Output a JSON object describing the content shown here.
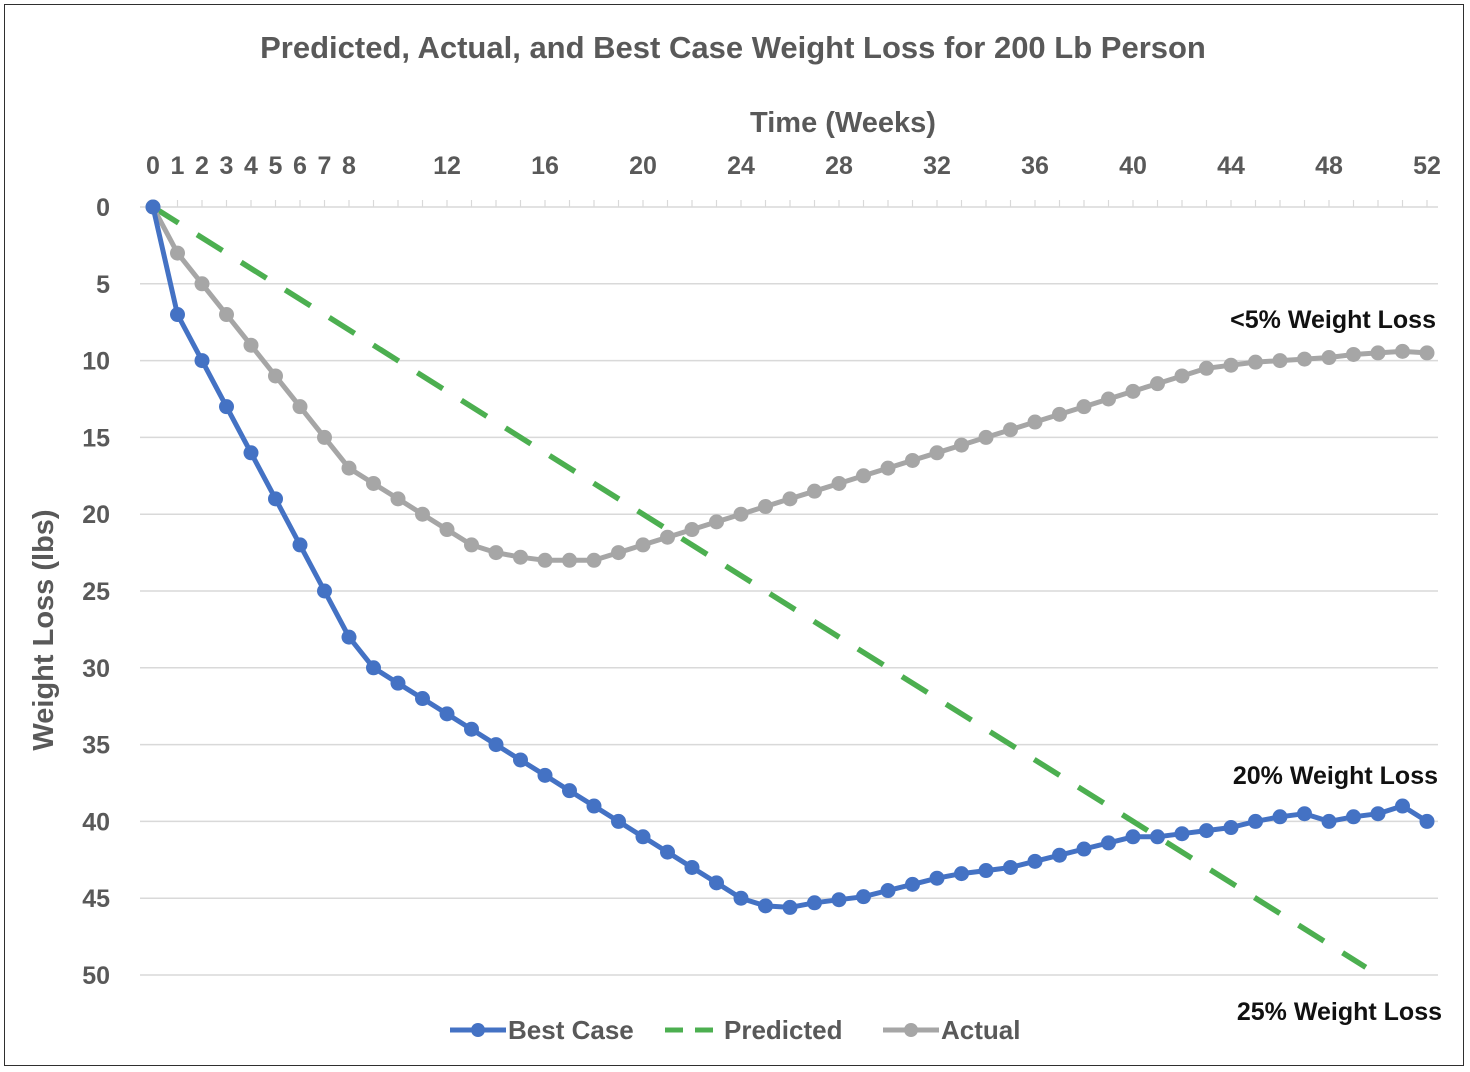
{
  "chart_data": {
    "type": "line",
    "title": "Predicted, Actual, and Best Case Weight Loss for 200 Lb Person",
    "xlabel": "Time (Weeks)",
    "ylabel": "Weight Loss (lbs)",
    "xlim": [
      0,
      52
    ],
    "ylim": [
      0,
      50
    ],
    "y_reversed": true,
    "x_axis_position": "top",
    "grid": true,
    "legend_position": "bottom",
    "x_tick_labels": [
      "0",
      "1",
      "2",
      "3",
      "4",
      "5",
      "6",
      "7",
      "8",
      "12",
      "16",
      "20",
      "24",
      "28",
      "32",
      "36",
      "40",
      "44",
      "48",
      "52"
    ],
    "y_tick_labels": [
      "0",
      "5",
      "10",
      "15",
      "20",
      "25",
      "30",
      "35",
      "40",
      "45",
      "50"
    ],
    "x": [
      0,
      1,
      2,
      3,
      4,
      5,
      6,
      7,
      8,
      9,
      10,
      11,
      12,
      13,
      14,
      15,
      16,
      17,
      18,
      19,
      20,
      21,
      22,
      23,
      24,
      25,
      26,
      27,
      28,
      29,
      30,
      31,
      32,
      33,
      34,
      35,
      36,
      37,
      38,
      39,
      40,
      41,
      42,
      43,
      44,
      45,
      46,
      47,
      48,
      49,
      50,
      51,
      52
    ],
    "series": [
      {
        "name": "Best Case",
        "color": "#4472c4",
        "style": "solid-markers",
        "values": [
          0,
          7,
          10,
          13,
          16,
          19,
          22,
          25,
          28,
          30,
          31,
          32,
          33,
          34,
          35,
          36,
          37,
          38,
          39,
          40,
          41,
          42,
          43,
          44,
          45,
          45.5,
          45.6,
          45.3,
          45.1,
          44.9,
          44.5,
          44.1,
          43.7,
          43.4,
          43.2,
          43,
          42.6,
          42.2,
          41.8,
          41.4,
          41,
          41,
          40.8,
          40.6,
          40.4,
          40,
          39.7,
          39.5,
          40,
          39.7,
          39.5,
          39,
          40
        ]
      },
      {
        "name": "Predicted",
        "color": "#4caf50",
        "style": "dashed",
        "x": [
          0,
          49.5
        ],
        "values": [
          0,
          49.5
        ]
      },
      {
        "name": "Actual",
        "color": "#a6a6a6",
        "style": "solid-markers",
        "values": [
          0,
          3,
          5,
          7,
          9,
          11,
          13,
          15,
          17,
          18,
          19,
          20,
          21,
          22,
          22.5,
          22.8,
          23,
          23,
          23,
          22.5,
          22,
          21.5,
          21,
          20.5,
          20,
          19.5,
          19,
          18.5,
          18,
          17.5,
          17,
          16.5,
          16,
          15.5,
          15,
          14.5,
          14,
          13.5,
          13,
          12.5,
          12,
          11.5,
          11,
          10.5,
          10.3,
          10.1,
          10,
          9.9,
          9.8,
          9.6,
          9.5,
          9.4,
          9.5
        ]
      }
    ],
    "annotations": [
      "<5% Weight Loss",
      "20% Weight Loss",
      "25% Weight Loss"
    ]
  }
}
